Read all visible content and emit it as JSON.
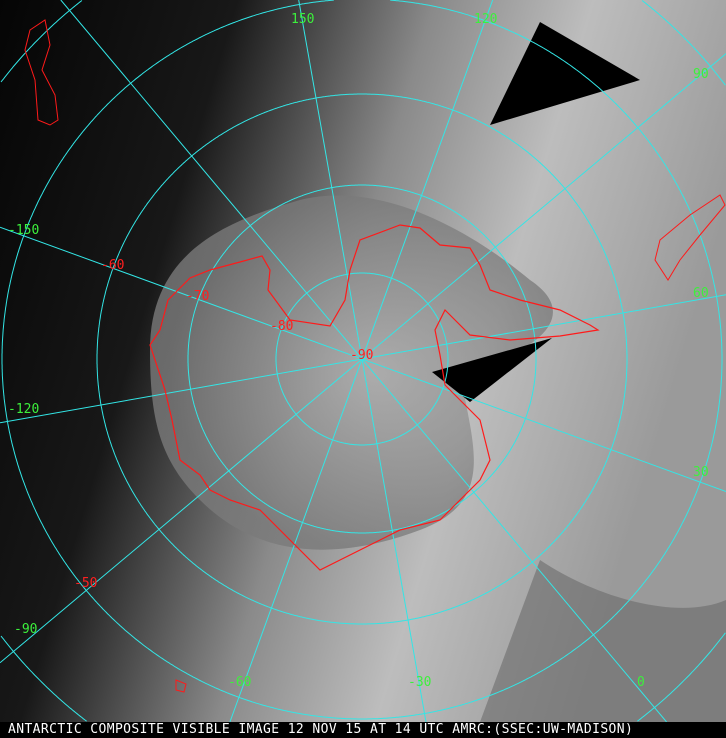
{
  "caption": "ANTARCTIC COMPOSITE VISIBLE IMAGE 12 NOV 15 AT 14 UTC AMRC:(SSEC:UW-MADISON)",
  "projection": "south-polar-stereographic",
  "colors": {
    "graticule": "#33e6e6",
    "coastline": "#ff1a1a",
    "lon_labels": "#3cf03c",
    "lat_labels": "#ff2020"
  },
  "longitude_labels": [
    "150",
    "120",
    "90",
    "60",
    "30",
    "0",
    "-30",
    "-60",
    "-90",
    "-120",
    "-150"
  ],
  "latitude_labels": [
    "-50",
    "-60",
    "-70",
    "-80",
    "-90"
  ]
}
